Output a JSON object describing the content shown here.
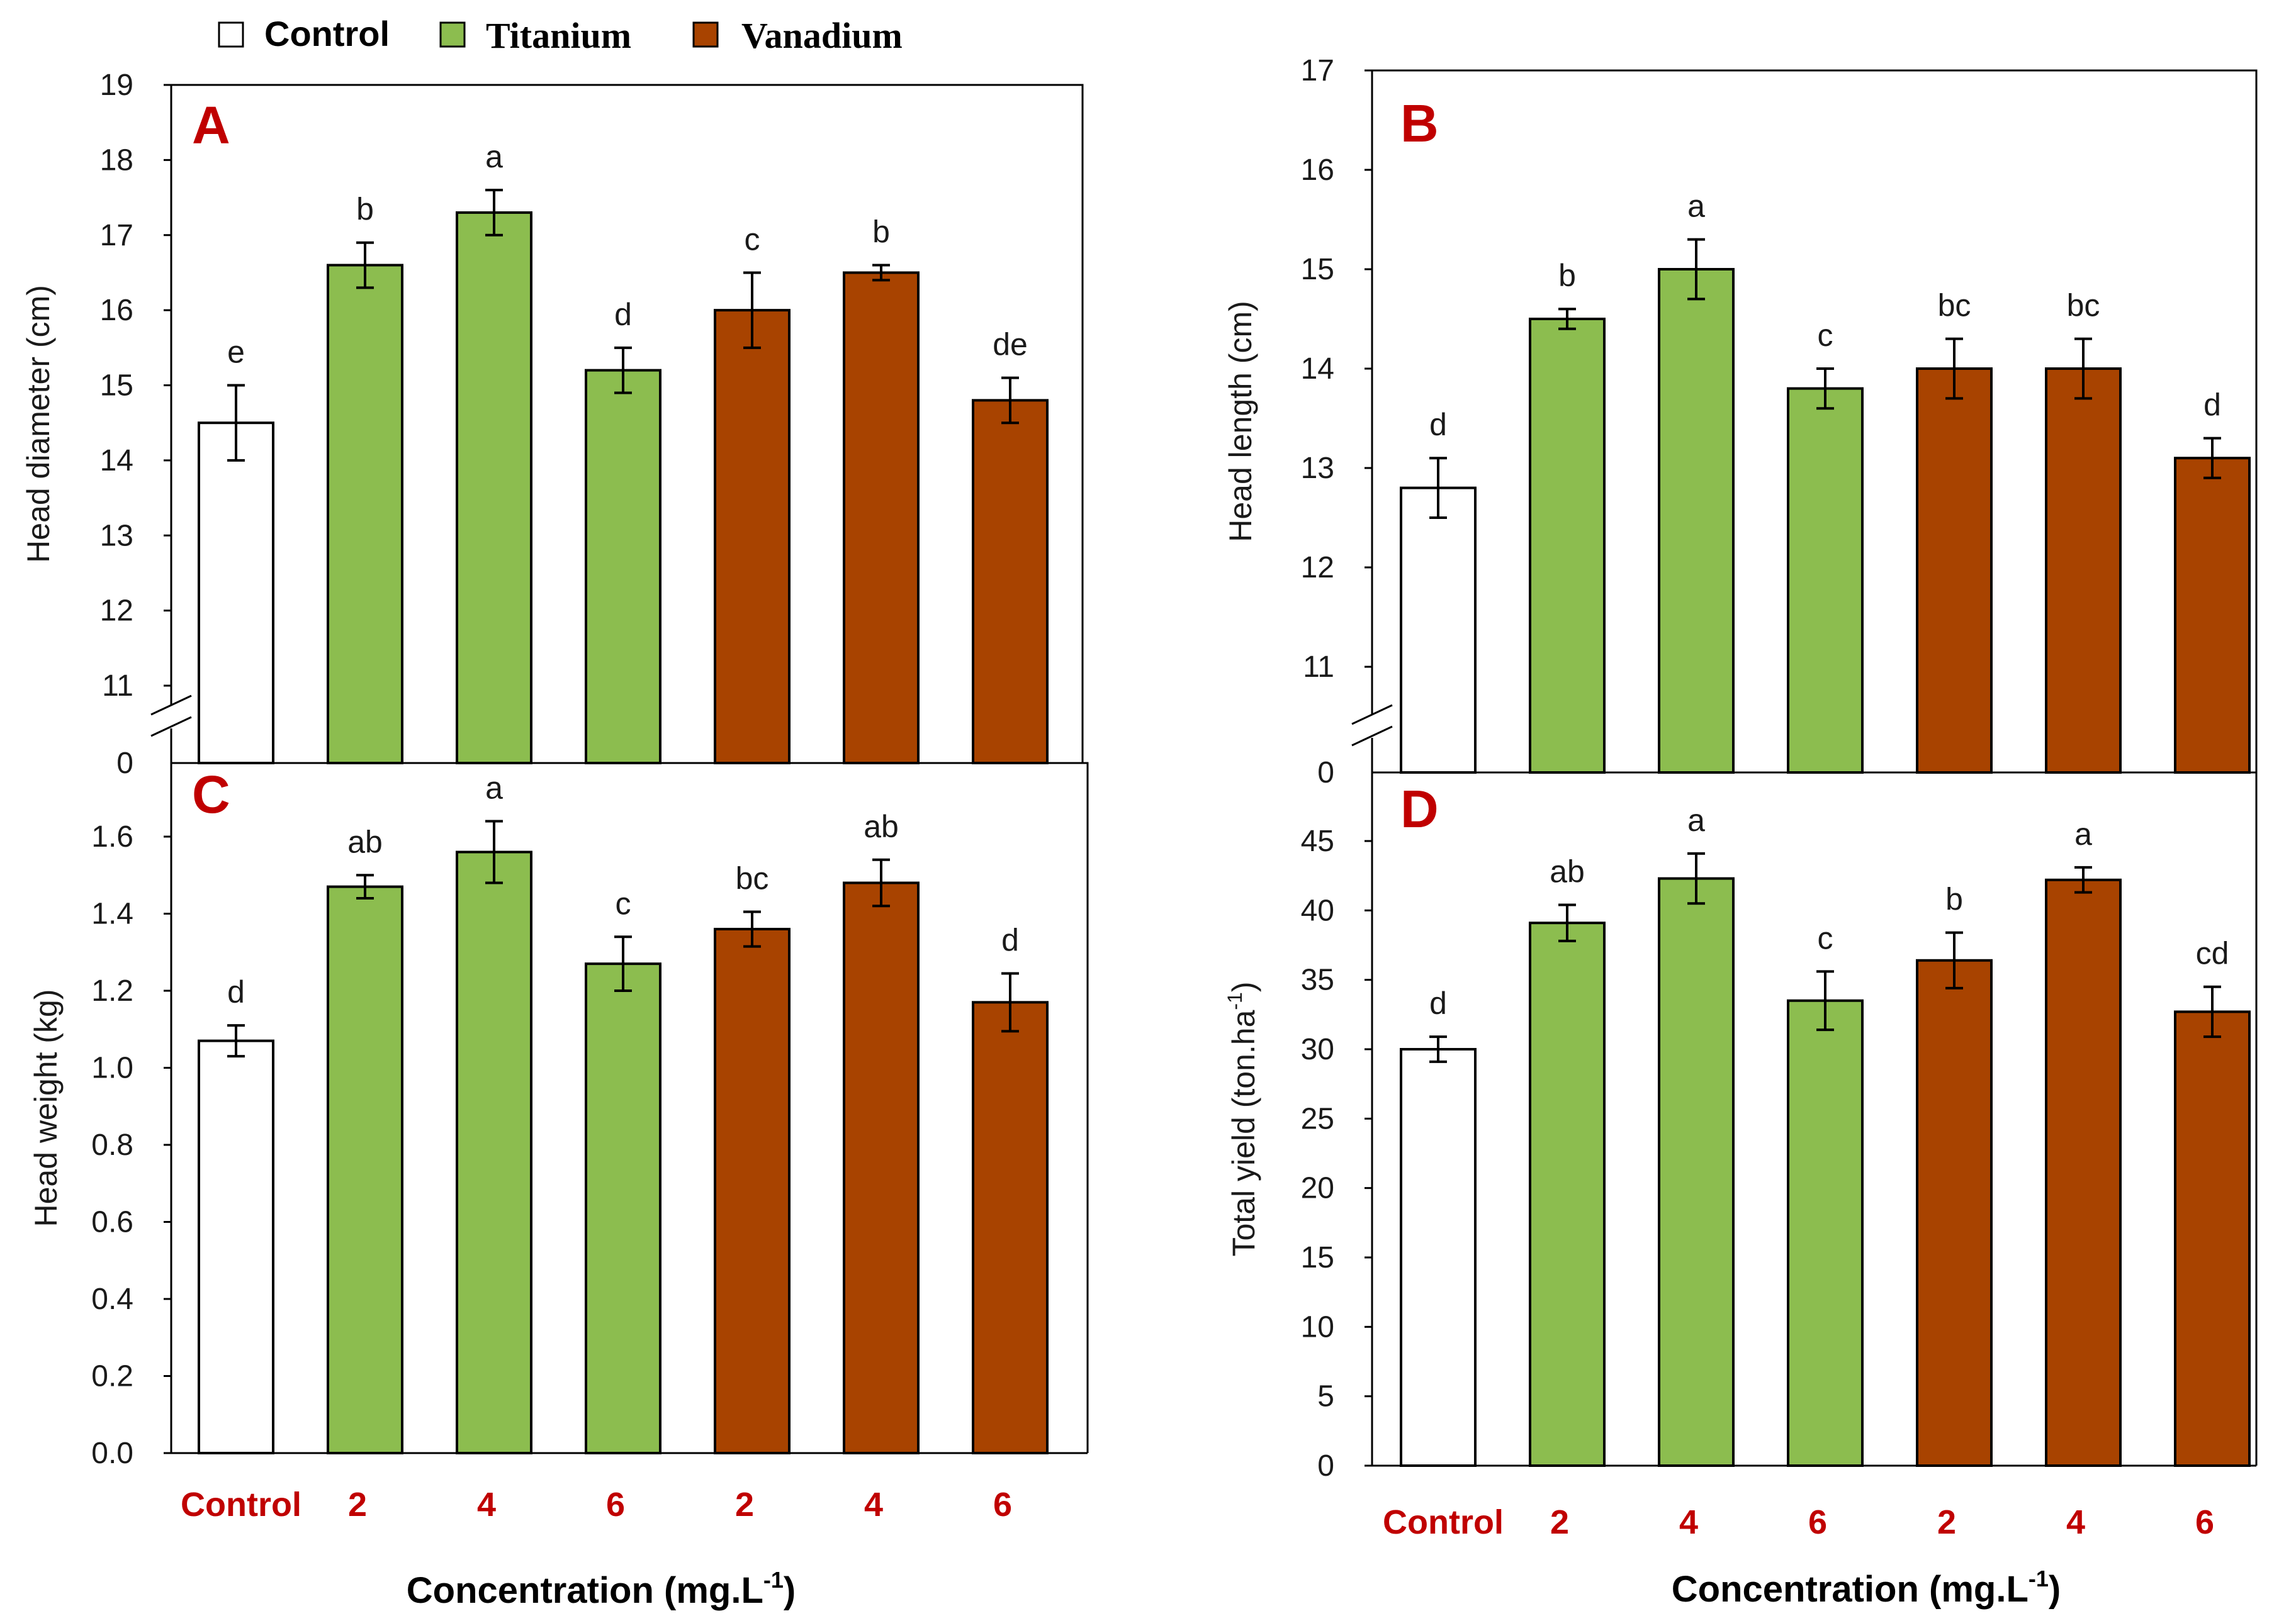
{
  "colors": {
    "Control": "#ffffff",
    "Titanium": "#8cbd4f",
    "Vanadium": "#a84300",
    "category_label": "#c00000",
    "panel_letter": "#c00000"
  },
  "legend": [
    {
      "name": "Control",
      "color": "#ffffff"
    },
    {
      "name": "Titanium",
      "color": "#8cbd4f"
    },
    {
      "name": "Vanadium",
      "color": "#a84300"
    }
  ],
  "x_axis_title_left": "Concentration (mg.L",
  "x_axis_title_right": "Concentration (mg.L",
  "x_axis_title_sup": "-1",
  "x_axis_title_close": ")",
  "chart_data": [
    {
      "panel": "A",
      "type": "bar",
      "ylabel": "Head diameter (cm)",
      "categories": [
        "Control",
        "2",
        "4",
        "6",
        "2",
        "4",
        "6"
      ],
      "groups": [
        "Control",
        "Titanium",
        "Titanium",
        "Titanium",
        "Vanadium",
        "Vanadium",
        "Vanadium"
      ],
      "values": [
        14.5,
        16.6,
        17.3,
        15.2,
        16.0,
        16.5,
        14.8
      ],
      "errors": [
        0.5,
        0.3,
        0.3,
        0.3,
        0.5,
        0.1,
        0.3
      ],
      "letters": [
        "e",
        "b",
        "a",
        "d",
        "c",
        "b",
        "de"
      ],
      "ylim": [
        11,
        19
      ],
      "yticks": [
        "11",
        "12",
        "13",
        "14",
        "15",
        "16",
        "17",
        "18",
        "19"
      ],
      "axis_break": true,
      "break_label": "0"
    },
    {
      "panel": "B",
      "type": "bar",
      "ylabel": "Head length (cm)",
      "categories": [
        "Control",
        "2",
        "4",
        "6",
        "2",
        "4",
        "6"
      ],
      "groups": [
        "Control",
        "Titanium",
        "Titanium",
        "Titanium",
        "Vanadium",
        "Vanadium",
        "Vanadium"
      ],
      "values": [
        12.8,
        14.5,
        15.0,
        13.8,
        14.0,
        14.0,
        13.1
      ],
      "errors": [
        0.3,
        0.1,
        0.3,
        0.2,
        0.3,
        0.3,
        0.2
      ],
      "letters": [
        "d",
        "b",
        "a",
        "c",
        "bc",
        "bc",
        "d"
      ],
      "ylim": [
        11,
        17
      ],
      "yticks": [
        "11",
        "12",
        "13",
        "14",
        "15",
        "16",
        "17"
      ],
      "axis_break": true,
      "break_label": "0"
    },
    {
      "panel": "C",
      "type": "bar",
      "ylabel": "Head weight (kg)",
      "categories": [
        "Control",
        "2",
        "4",
        "6",
        "2",
        "4",
        "6"
      ],
      "groups": [
        "Control",
        "Titanium",
        "Titanium",
        "Titanium",
        "Vanadium",
        "Vanadium",
        "Vanadium"
      ],
      "values": [
        1.07,
        1.47,
        1.56,
        1.27,
        1.36,
        1.48,
        1.17
      ],
      "errors": [
        0.04,
        0.03,
        0.08,
        0.07,
        0.045,
        0.06,
        0.075
      ],
      "letters": [
        "d",
        "ab",
        "a",
        "c",
        "bc",
        "ab",
        "d"
      ],
      "ylim": [
        0,
        1.8
      ],
      "yticks": [
        "0.0",
        "0.2",
        "0.4",
        "0.6",
        "0.8",
        "1.0",
        "1.2",
        "1.4",
        "1.6"
      ],
      "axis_break": false
    },
    {
      "panel": "D",
      "type": "bar",
      "ylabel": "Total yield (ton.ha",
      "ylabel_sup": "-1",
      "ylabel_close": ")",
      "categories": [
        "Control",
        "2",
        "4",
        "6",
        "2",
        "4",
        "6"
      ],
      "groups": [
        "Control",
        "Titanium",
        "Titanium",
        "Titanium",
        "Vanadium",
        "Vanadium",
        "Vanadium"
      ],
      "values": [
        30.0,
        39.1,
        42.3,
        33.5,
        36.4,
        42.2,
        32.7
      ],
      "errors": [
        0.9,
        1.3,
        1.8,
        2.1,
        2.0,
        0.9,
        1.8
      ],
      "letters": [
        "d",
        "ab",
        "a",
        "c",
        "b",
        "a",
        "cd"
      ],
      "ylim": [
        0,
        50
      ],
      "yticks": [
        "0",
        "5",
        "10",
        "15",
        "20",
        "25",
        "30",
        "35",
        "40",
        "45"
      ],
      "axis_break": false
    }
  ]
}
